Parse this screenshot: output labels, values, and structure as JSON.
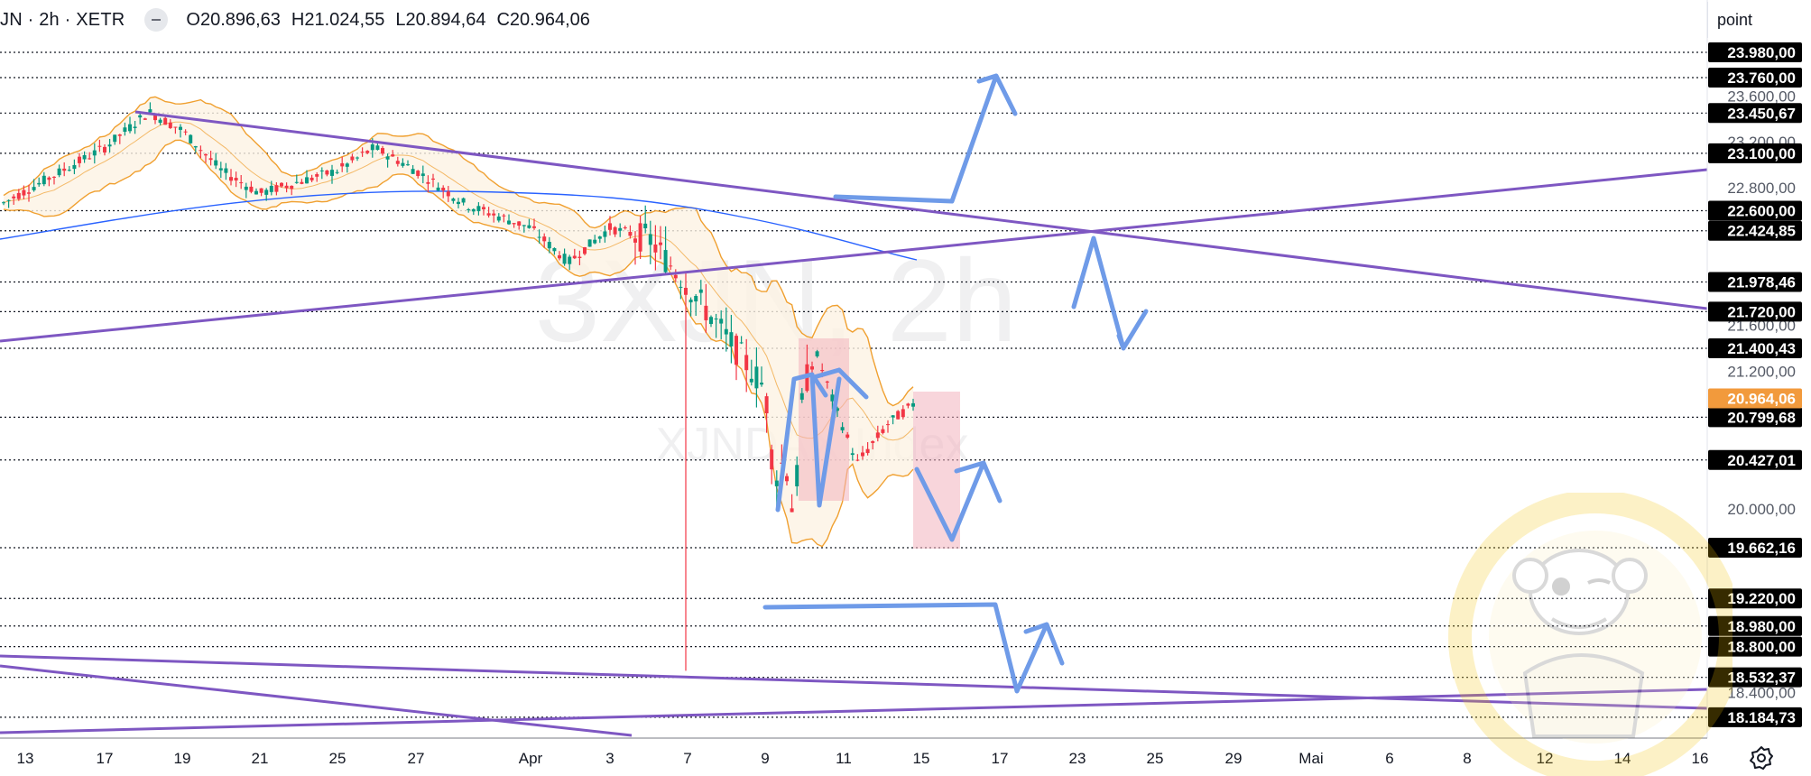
{
  "header": {
    "symbol": "JN · 2h · XETR",
    "open": "O20.896,63",
    "high": "H21.024,55",
    "low": "L20.894,64",
    "close": "C20.964,06",
    "unit": "point"
  },
  "watermark": {
    "line1": "3XJN, 2h",
    "line2": "XJNDAX Index"
  },
  "colors": {
    "up": "#089981",
    "down": "#f23645",
    "bb": "#f0a030",
    "bb_fill": "#fdf3e4",
    "ma": "#2962ff",
    "trend": "#7e57c2",
    "arrow": "#6f9be8",
    "zone": "#f3b3bd",
    "last_price": "#f29a3c",
    "label_bg": "#000000"
  },
  "chart_data": {
    "type": "candlestick",
    "symbol": "JN",
    "interval": "2h",
    "exchange": "XETR",
    "x_ticks": [
      "13",
      "17",
      "19",
      "21",
      "25",
      "27",
      "Apr",
      "3",
      "7",
      "9",
      "11",
      "15",
      "17",
      "23",
      "25",
      "29",
      "Mai",
      "6",
      "8",
      "12",
      "14",
      "16"
    ],
    "y_ticks": [
      "23.600,00",
      "23.200,00",
      "22.800,00",
      "21.600,00",
      "21.200,00",
      "20.000,00",
      "18.400,00"
    ],
    "level_lines": [
      "23.980,00",
      "23.760,00",
      "23.450,67",
      "23.100,00",
      "22.600,00",
      "22.424,85",
      "21.978,46",
      "21.720,00",
      "21.400,43",
      "20.799,68",
      "20.427,01",
      "19.662,16",
      "19.220,00",
      "18.980,00",
      "18.800,00",
      "18.532,37",
      "18.184,73"
    ],
    "last_price": "20.964,06",
    "ylim": [
      18050,
      24100
    ],
    "path_keypoints": [
      {
        "d": "Mar 13",
        "close": 22650
      },
      {
        "d": "Mar 17",
        "close": 23150
      },
      {
        "d": "Mar 18",
        "close": 23460
      },
      {
        "d": "Mar 19",
        "close": 23300
      },
      {
        "d": "Mar 20",
        "close": 22950
      },
      {
        "d": "Mar 21",
        "close": 22750
      },
      {
        "d": "Mar 24",
        "close": 22950
      },
      {
        "d": "Mar 25",
        "close": 23150
      },
      {
        "d": "Mar 26",
        "close": 22950
      },
      {
        "d": "Mar 27",
        "close": 22650
      },
      {
        "d": "Mar 28",
        "close": 22450
      },
      {
        "d": "Mar 31",
        "close": 22150
      },
      {
        "d": "Apr 1",
        "close": 22450
      },
      {
        "d": "Apr 2",
        "close": 22350
      },
      {
        "d": "Apr 3",
        "close": 21950
      },
      {
        "d": "Apr 4",
        "close": 21050
      },
      {
        "d": "Apr 7",
        "close": 20250
      },
      {
        "d": "Apr 8",
        "close": 20450
      },
      {
        "d": "Apr 9",
        "close": 19900
      },
      {
        "d": "Apr 9 late",
        "close": 21050
      },
      {
        "d": "Apr 10",
        "close": 21350
      },
      {
        "d": "Apr 10 late",
        "close": 20900
      },
      {
        "d": "Apr 11",
        "close": 20400
      },
      {
        "d": "Apr 14",
        "close": 20750
      },
      {
        "d": "Apr 15",
        "close": 20964
      }
    ],
    "indicators": [
      "Bollinger Bands",
      "Moving Average"
    ]
  }
}
